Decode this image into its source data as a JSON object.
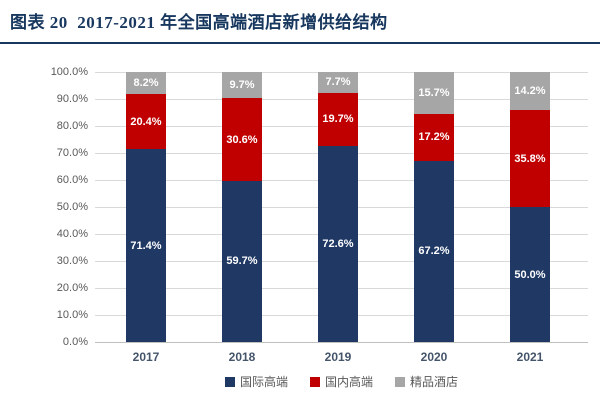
{
  "title": "图表 20  2017-2021 年全国高端酒店新增供给结构",
  "colors": {
    "title": "#17375e",
    "title_rule": "#17375e",
    "gridline": "#d9d9d9",
    "axis_text": "#595959",
    "x_tick_text": "#44546a",
    "bar_label_text": "#ffffff"
  },
  "chart_data": {
    "type": "bar",
    "stacked": true,
    "percent_stacked": true,
    "title": "图表 20  2017-2021 年全国高端酒店新增供给结构",
    "categories": [
      "2017",
      "2018",
      "2019",
      "2020",
      "2021"
    ],
    "series": [
      {
        "name": "国际高端",
        "color": "#1f3864",
        "values": [
          71.4,
          59.7,
          72.6,
          67.2,
          50.0
        ]
      },
      {
        "name": "国内高端",
        "color": "#c00000",
        "values": [
          20.4,
          30.6,
          19.7,
          17.2,
          35.8
        ]
      },
      {
        "name": "精品酒店",
        "color": "#a6a6a6",
        "values": [
          8.2,
          9.7,
          7.7,
          15.7,
          14.2
        ]
      }
    ],
    "value_suffix": "%",
    "data_labels": true,
    "xlabel": "",
    "ylabel": "",
    "ylim": [
      0,
      100
    ],
    "ytick_labels": [
      "100.0%",
      "90.0%",
      "80.0%",
      "70.0%",
      "60.0%",
      "50.0%",
      "40.0%",
      "30.0%",
      "20.0%",
      "10.0%",
      "0.0%"
    ],
    "grid": true,
    "legend_position": "bottom"
  }
}
